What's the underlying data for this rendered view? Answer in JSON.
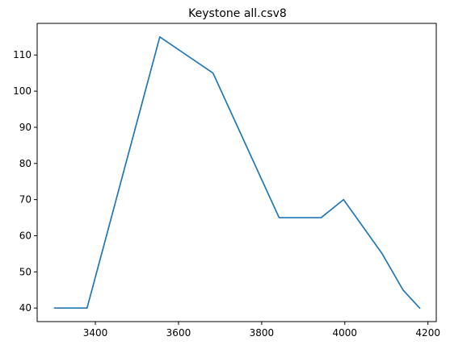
{
  "chart_data": {
    "type": "line",
    "title": "Keystone all.csv8",
    "xlabel": "",
    "ylabel": "",
    "xlim": [
      3260,
      4220
    ],
    "ylim": [
      36.25,
      118.75
    ],
    "x_ticks": [
      3400,
      3600,
      3800,
      4000,
      4200
    ],
    "y_ticks": [
      40,
      50,
      60,
      70,
      80,
      90,
      100,
      110
    ],
    "grid": false,
    "series": [
      {
        "color": "#1f77b4",
        "x": [
          3302,
          3380,
          3555,
          3683,
          3842,
          3943,
          3997,
          4090,
          4140,
          4180
        ],
        "y": [
          40,
          40,
          115,
          105,
          65,
          65,
          70,
          55,
          45,
          40
        ]
      }
    ]
  }
}
